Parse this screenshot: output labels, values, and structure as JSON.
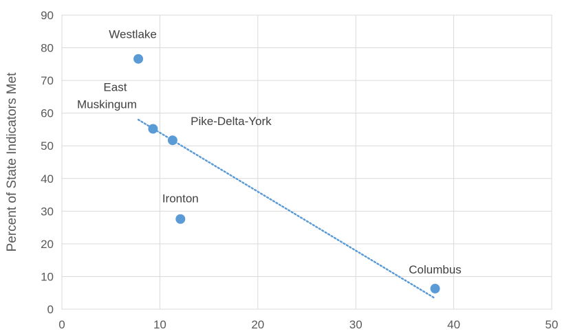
{
  "chart_data": {
    "type": "scatter",
    "title": "",
    "xlabel": "",
    "ylabel": "Percent of State Indicators Met",
    "xlim": [
      0,
      50
    ],
    "ylim": [
      0,
      90
    ],
    "xticks": [
      0,
      10,
      20,
      30,
      40,
      50
    ],
    "yticks": [
      0,
      10,
      20,
      30,
      40,
      50,
      60,
      70,
      80,
      90
    ],
    "grid": true,
    "legend": "none",
    "marker_color": "#5b9bd5",
    "trendline": {
      "type": "linear",
      "style": "dotted",
      "color": "#5b9bd5",
      "x_range": [
        7.8,
        38.0
      ],
      "y_range": [
        58.0,
        3.5
      ]
    },
    "points": [
      {
        "label": "Westlake",
        "x": 7.8,
        "y": 76.6
      },
      {
        "label": "East Muskingum",
        "x": 9.3,
        "y": 55.2
      },
      {
        "label": "Pike-Delta-York",
        "x": 11.3,
        "y": 51.7
      },
      {
        "label": "Ironton",
        "x": 12.1,
        "y": 27.6
      },
      {
        "label": "Columbus",
        "x": 38.1,
        "y": 6.3
      }
    ]
  }
}
